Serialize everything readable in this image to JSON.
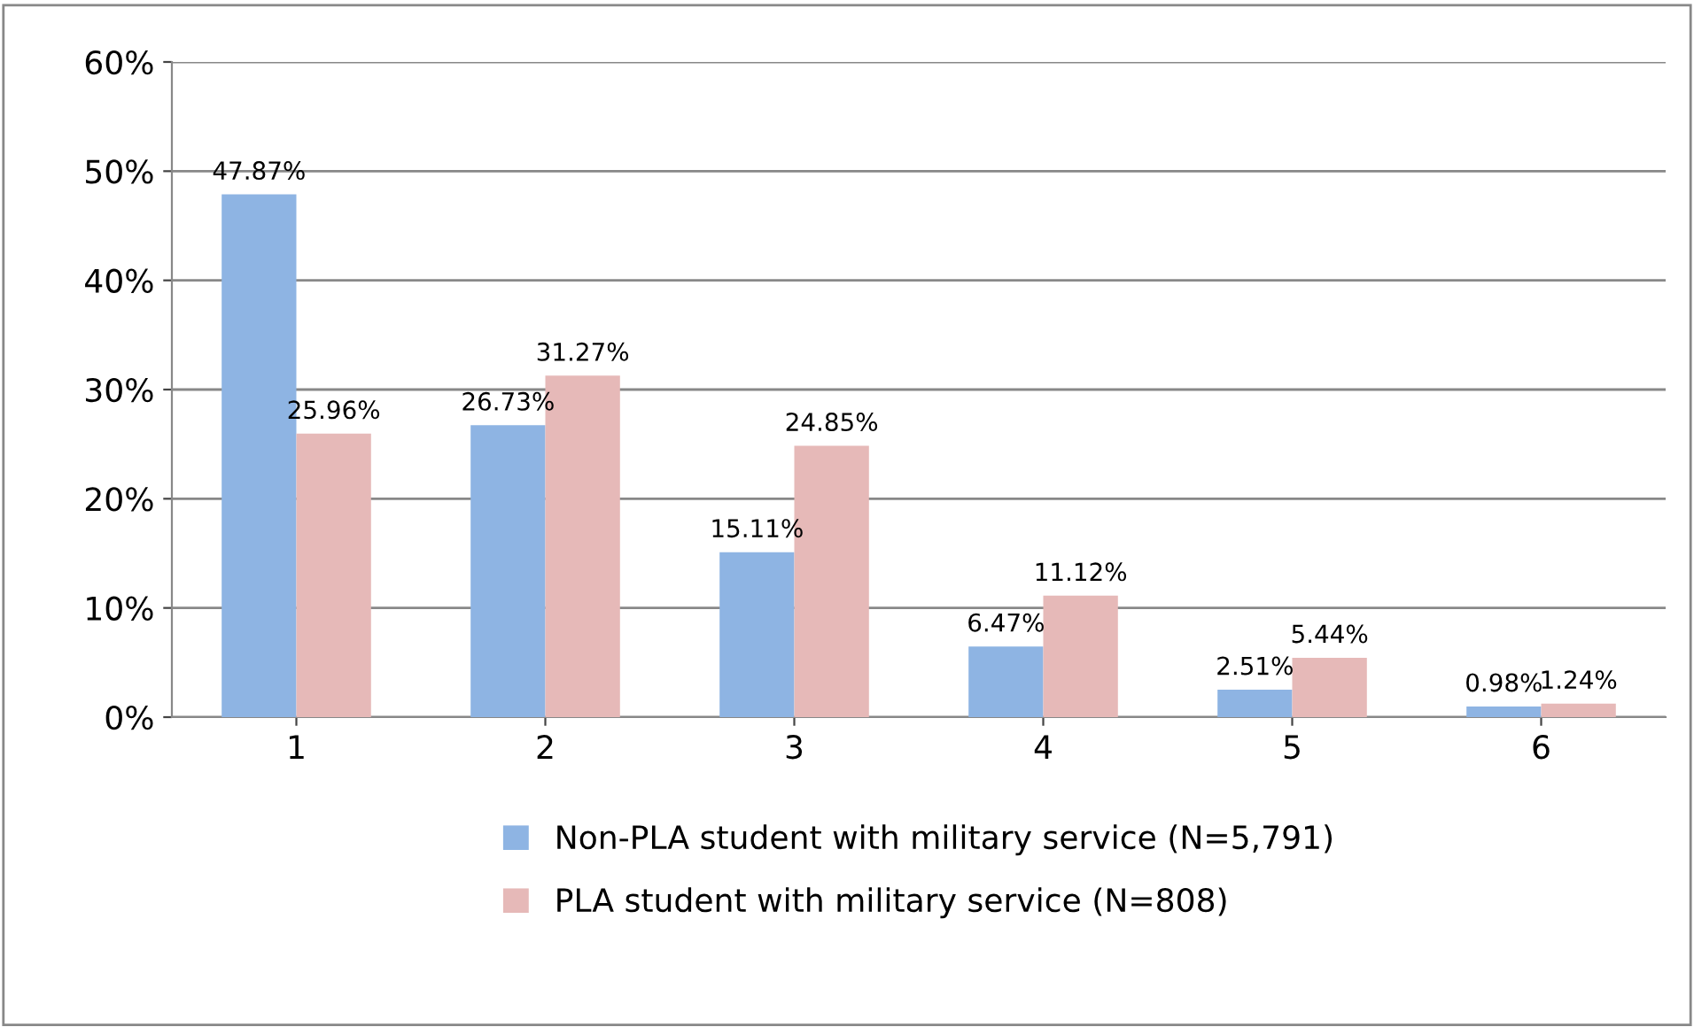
{
  "chart_data": {
    "type": "bar",
    "categories": [
      "1",
      "2",
      "3",
      "4",
      "5",
      "6"
    ],
    "series": [
      {
        "name": "Non-PLA student with military service (N=5,791)",
        "color": "#8eb4e3",
        "values": [
          47.87,
          26.73,
          15.11,
          6.47,
          2.51,
          0.98
        ],
        "value_labels": [
          "47.87%",
          "26.73%",
          "15.11%",
          "6.47%",
          "2.51%",
          "0.98%"
        ]
      },
      {
        "name": "PLA student with military service (N=808)",
        "color": "#e6b9b8",
        "values": [
          25.96,
          31.27,
          24.85,
          11.12,
          5.44,
          1.24
        ],
        "value_labels": [
          "25.96%",
          "31.27%",
          "24.85%",
          "11.12%",
          "5.44%",
          "1.24%"
        ]
      }
    ],
    "ylim": [
      0,
      60
    ],
    "yticks": [
      {
        "value": 0,
        "label": "0%"
      },
      {
        "value": 10,
        "label": "10%"
      },
      {
        "value": 20,
        "label": "20%"
      },
      {
        "value": 30,
        "label": "30%"
      },
      {
        "value": 40,
        "label": "40%"
      },
      {
        "value": 50,
        "label": "50%"
      },
      {
        "value": 60,
        "label": "60%"
      }
    ],
    "grid": "y",
    "legend": "bottom"
  }
}
